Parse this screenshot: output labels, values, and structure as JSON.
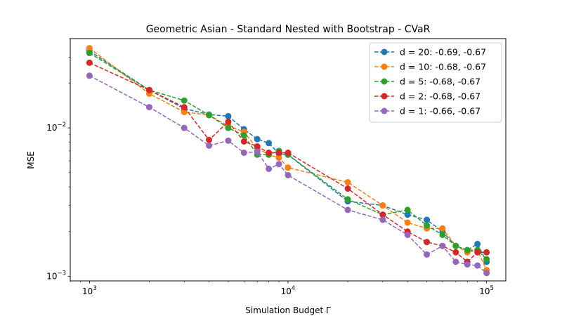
{
  "chart_data": {
    "type": "line",
    "title": "Geometric Asian - Standard Nested with Bootstrap - CVaR",
    "xlabel": "Simulation Budget Γ",
    "ylabel": "MSE",
    "xscale": "log",
    "yscale": "log",
    "xlim": [
      800,
      125000
    ],
    "ylim": [
      0.00093,
      0.04
    ],
    "x_ticks": [
      {
        "value": 1000,
        "base": "10",
        "exp": "3"
      },
      {
        "value": 10000,
        "base": "10",
        "exp": "4"
      },
      {
        "value": 100000,
        "base": "10",
        "exp": "5"
      }
    ],
    "y_ticks": [
      {
        "value": 0.001,
        "base": "10",
        "exp": "−3"
      },
      {
        "value": 0.01,
        "base": "10",
        "exp": "−2"
      }
    ],
    "grid": false,
    "legend_position": "top-right",
    "x": [
      1000,
      2000,
      3000,
      4000,
      5000,
      6000,
      7000,
      8000,
      9000,
      10000,
      20000,
      30000,
      40000,
      50000,
      60000,
      70000,
      80000,
      90000,
      100000
    ],
    "series": [
      {
        "name": "d = 20: -0.69, -0.67",
        "color": "#1f77b4",
        "values": [
          0.033,
          0.018,
          0.0135,
          0.0123,
          0.012,
          0.0098,
          0.0084,
          0.0079,
          0.0067,
          0.0066,
          0.0032,
          0.003,
          0.0026,
          0.0024,
          0.002,
          0.0016,
          0.0015,
          0.00165,
          0.00125
        ]
      },
      {
        "name": "d = 10: -0.68, -0.67",
        "color": "#ff7f0e",
        "values": [
          0.0345,
          0.017,
          0.0128,
          0.0122,
          0.0103,
          0.0094,
          0.0073,
          0.0066,
          0.0063,
          0.0054,
          0.0043,
          0.003,
          0.0023,
          0.0021,
          0.0021,
          0.0016,
          0.00145,
          0.0015,
          0.0011
        ]
      },
      {
        "name": "d = 5: -0.68, -0.67",
        "color": "#2ca02c",
        "values": [
          0.032,
          0.018,
          0.0153,
          0.0122,
          0.01,
          0.0089,
          0.0066,
          0.0066,
          0.007,
          0.0066,
          0.0033,
          0.0026,
          0.0028,
          0.0022,
          0.0019,
          0.0016,
          0.0015,
          0.0015,
          0.0013
        ]
      },
      {
        "name": "d = 2: -0.68, -0.67",
        "color": "#d62728",
        "values": [
          0.0275,
          0.018,
          0.0138,
          0.0083,
          0.011,
          0.0081,
          0.0075,
          0.0068,
          0.0068,
          0.0068,
          0.0039,
          0.0026,
          0.002,
          0.0017,
          0.0016,
          0.00145,
          0.00125,
          0.00145,
          0.00145
        ]
      },
      {
        "name": "d = 1: -0.66, -0.67",
        "color": "#9467bd",
        "values": [
          0.0225,
          0.0138,
          0.01,
          0.0076,
          0.0082,
          0.0068,
          0.0069,
          0.0053,
          0.0057,
          0.0048,
          0.0028,
          0.0024,
          0.0019,
          0.0014,
          0.0016,
          0.00125,
          0.0012,
          0.00118,
          0.00105
        ]
      }
    ]
  }
}
